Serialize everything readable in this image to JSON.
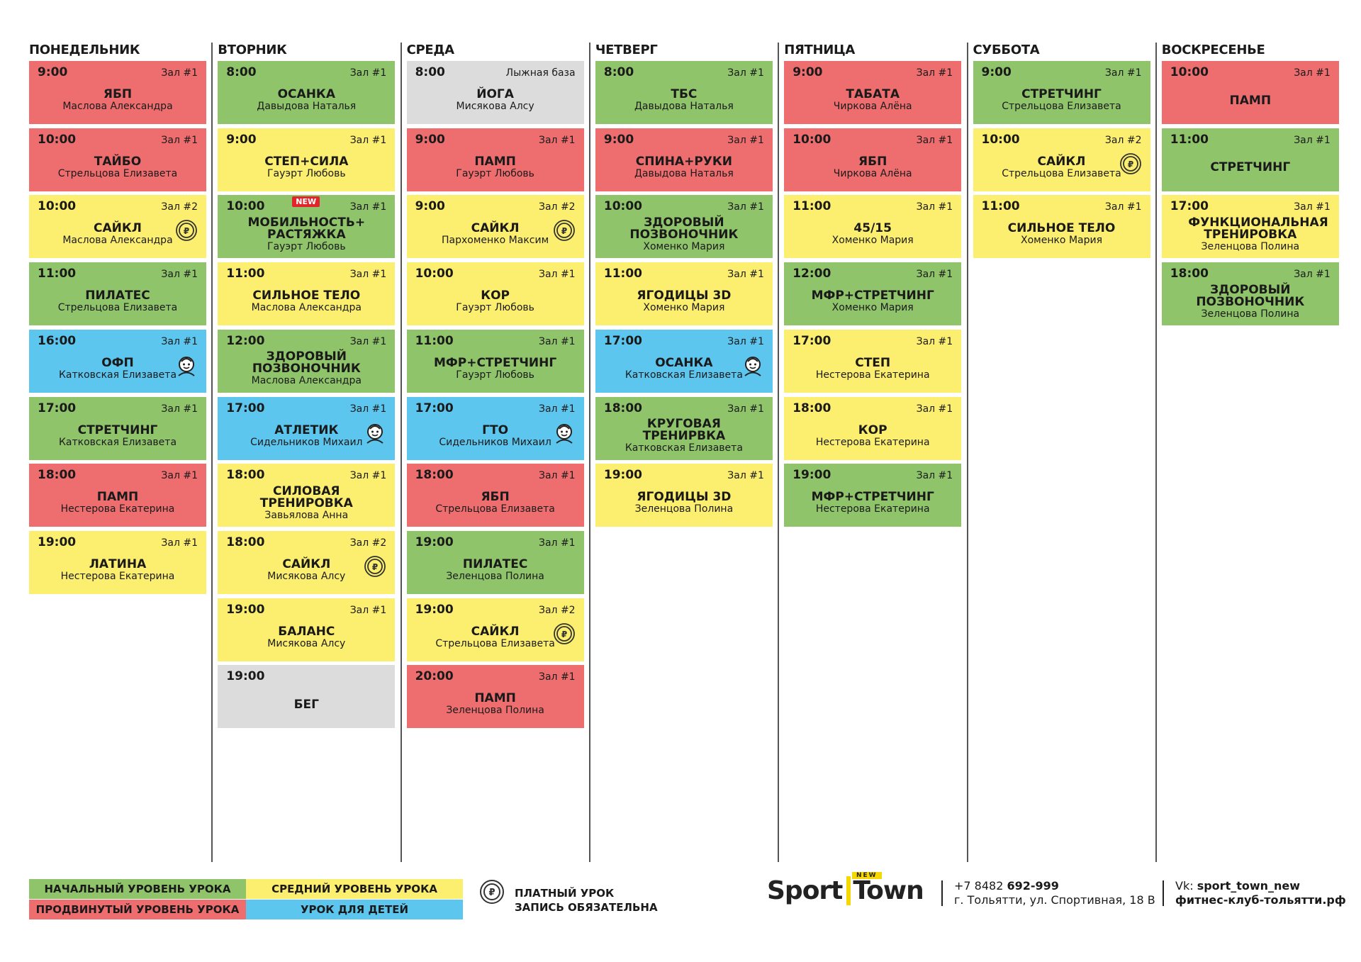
{
  "days": [
    {
      "name": "ПОНЕДЕЛЬНИК",
      "classes": [
        {
          "time": "9:00",
          "hall": "Зал #1",
          "title": "ЯБП",
          "trainer": "Маслова Александра",
          "color": "#ee6e70"
        },
        {
          "time": "10:00",
          "hall": "Зал #1",
          "title": "ТАЙБО",
          "trainer": "Стрельцова Елизавета",
          "color": "#ee6e70"
        },
        {
          "time": "10:00",
          "hall": "Зал #2",
          "title": "САЙКЛ",
          "trainer": "Маслова Александра",
          "color": "#fcee6e",
          "paid": true
        },
        {
          "time": "11:00",
          "hall": "Зал #1",
          "title": "ПИЛАТЕС",
          "trainer": "Стрельцова Елизавета",
          "color": "#8fc46b"
        },
        {
          "time": "16:00",
          "hall": "Зал #1",
          "title": "ОФП",
          "trainer": "Катковская Елизавета",
          "color": "#5cc6ee",
          "kids": true
        },
        {
          "time": "17:00",
          "hall": "Зал #1",
          "title": "СТРЕТЧИНГ",
          "trainer": "Катковская Елизавета",
          "color": "#8fc46b"
        },
        {
          "time": "18:00",
          "hall": "Зал #1",
          "title": "ПАМП",
          "trainer": "Нестерова Екатерина",
          "color": "#ee6e70"
        },
        {
          "time": "19:00",
          "hall": "Зал #1",
          "title": "ЛАТИНА",
          "trainer": "Нестерова Екатерина",
          "color": "#fcee6e"
        }
      ]
    },
    {
      "name": "ВТОРНИК",
      "classes": [
        {
          "time": "8:00",
          "hall": "Зал #1",
          "title": "ОСАНКА",
          "trainer": "Давыдова Наталья",
          "color": "#8fc46b"
        },
        {
          "time": "9:00",
          "hall": "Зал #1",
          "title": "СТЕП+СИЛА",
          "trainer": "Гауэрт Любовь",
          "color": "#fcee6e"
        },
        {
          "time": "10:00",
          "hall": "Зал #1",
          "title": "МОБИЛЬНОСТЬ+ РАСТЯЖКА",
          "trainer": "Гауэрт Любовь",
          "color": "#8fc46b",
          "badge": "NEW"
        },
        {
          "time": "11:00",
          "hall": "Зал #1",
          "title": "СИЛЬНОЕ ТЕЛО",
          "trainer": "Маслова Александра",
          "color": "#fcee6e"
        },
        {
          "time": "12:00",
          "hall": "Зал #1",
          "title": "ЗДОРОВЫЙ ПОЗВОНОЧНИК",
          "trainer": "Маслова Александра",
          "color": "#8fc46b"
        },
        {
          "time": "17:00",
          "hall": "Зал #1",
          "title": "АТЛЕТИК",
          "trainer": "Сидельников Михаил",
          "color": "#5cc6ee",
          "kids": true
        },
        {
          "time": "18:00",
          "hall": "Зал #1",
          "title": "СИЛОВАЯ ТРЕНИРОВКА",
          "trainer": "Завьялова Анна",
          "color": "#fcee6e"
        },
        {
          "time": "18:00",
          "hall": "Зал #2",
          "title": "САЙКЛ",
          "trainer": "Мисякова Алсу",
          "color": "#fcee6e",
          "paid": true
        },
        {
          "time": "19:00",
          "hall": "Зал #1",
          "title": "БАЛАНС",
          "trainer": "Мисякова Алсу",
          "color": "#fcee6e"
        },
        {
          "time": "19:00",
          "title": "БЕГ",
          "color": "#dcdcdc"
        }
      ]
    },
    {
      "name": "СРЕДА",
      "classes": [
        {
          "time": "8:00",
          "hall": "Лыжная база",
          "title": "ЙОГА",
          "trainer": "Мисякова Алсу",
          "color": "#dcdcdc"
        },
        {
          "time": "9:00",
          "hall": "Зал #1",
          "title": "ПАМП",
          "trainer": "Гауэрт Любовь",
          "color": "#ee6e70"
        },
        {
          "time": "9:00",
          "hall": "Зал #2",
          "title": "САЙКЛ",
          "trainer": "Пархоменко Максим",
          "color": "#fcee6e",
          "paid": true
        },
        {
          "time": "10:00",
          "hall": "Зал #1",
          "title": "КОР",
          "trainer": "Гауэрт Любовь",
          "color": "#fcee6e"
        },
        {
          "time": "11:00",
          "hall": "Зал #1",
          "title": "МФР+СТРЕТЧИНГ",
          "trainer": "Гауэрт Любовь",
          "color": "#8fc46b"
        },
        {
          "time": "17:00",
          "hall": "Зал #1",
          "title": "ГТО",
          "trainer": "Сидельников Михаил",
          "color": "#5cc6ee",
          "kids": true
        },
        {
          "time": "18:00",
          "hall": "Зал #1",
          "title": "ЯБП",
          "trainer": "Стрельцова Елизавета",
          "color": "#ee6e70"
        },
        {
          "time": "19:00",
          "hall": "Зал #1",
          "title": "ПИЛАТЕС",
          "trainer": "Зеленцова Полина",
          "color": "#8fc46b"
        },
        {
          "time": "19:00",
          "hall": "Зал #2",
          "title": "САЙКЛ",
          "trainer": "Стрельцова Елизавета",
          "color": "#fcee6e",
          "paid": true
        },
        {
          "time": "20:00",
          "hall": "Зал #1",
          "title": "ПАМП",
          "trainer": "Зеленцова Полина",
          "color": "#ee6e70"
        }
      ]
    },
    {
      "name": "ЧЕТВЕРГ",
      "classes": [
        {
          "time": "8:00",
          "hall": "Зал #1",
          "title": "ТБС",
          "trainer": "Давыдова Наталья",
          "color": "#8fc46b"
        },
        {
          "time": "9:00",
          "hall": "Зал #1",
          "title": "СПИНА+РУКИ",
          "trainer": "Давыдова Наталья",
          "color": "#ee6e70"
        },
        {
          "time": "10:00",
          "hall": "Зал #1",
          "title": "ЗДОРОВЫЙ ПОЗВОНОЧНИК",
          "trainer": "Хоменко Мария",
          "color": "#8fc46b"
        },
        {
          "time": "11:00",
          "hall": "Зал #1",
          "title": "ЯГОДИЦЫ 3D",
          "trainer": "Хоменко Мария",
          "color": "#fcee6e"
        },
        {
          "time": "17:00",
          "hall": "Зал #1",
          "title": "ОСАНКА",
          "trainer": "Катковская Елизавета",
          "color": "#5cc6ee",
          "kids": true
        },
        {
          "time": "18:00",
          "hall": "Зал #1",
          "title": "КРУГОВАЯ ТРЕНИРВКА",
          "trainer": "Катковская Елизавета",
          "color": "#8fc46b"
        },
        {
          "time": "19:00",
          "hall": "Зал #1",
          "title": "ЯГОДИЦЫ 3D",
          "trainer": "Зеленцова Полина",
          "color": "#fcee6e"
        }
      ]
    },
    {
      "name": "ПЯТНИЦА",
      "classes": [
        {
          "time": "9:00",
          "hall": "Зал #1",
          "title": "ТАБАТА",
          "trainer": "Чиркова Алёна",
          "color": "#ee6e70"
        },
        {
          "time": "10:00",
          "hall": "Зал #1",
          "title": "ЯБП",
          "trainer": "Чиркова Алёна",
          "color": "#ee6e70"
        },
        {
          "time": "11:00",
          "hall": "Зал #1",
          "title": "45/15",
          "trainer": "Хоменко Мария",
          "color": "#fcee6e"
        },
        {
          "time": "12:00",
          "hall": "Зал #1",
          "title": "МФР+СТРЕТЧИНГ",
          "trainer": "Хоменко Мария",
          "color": "#8fc46b"
        },
        {
          "time": "17:00",
          "hall": "Зал #1",
          "title": "СТЕП",
          "trainer": "Нестерова Екатерина",
          "color": "#fcee6e"
        },
        {
          "time": "18:00",
          "hall": "Зал #1",
          "title": "КОР",
          "trainer": "Нестерова Екатерина",
          "color": "#fcee6e"
        },
        {
          "time": "19:00",
          "hall": "Зал #1",
          "title": "МФР+СТРЕТЧИНГ",
          "trainer": "Нестерова Екатерина",
          "color": "#8fc46b"
        }
      ]
    },
    {
      "name": "СУББОТА",
      "classes": [
        {
          "time": "9:00",
          "hall": "Зал #1",
          "title": "СТРЕТЧИНГ",
          "trainer": "Стрельцова Елизавета",
          "color": "#8fc46b"
        },
        {
          "time": "10:00",
          "hall": "Зал #2",
          "title": "САЙКЛ",
          "trainer": "Стрельцова Елизавета",
          "color": "#fcee6e",
          "paid": true
        },
        {
          "time": "11:00",
          "hall": "Зал #1",
          "title": "СИЛЬНОЕ ТЕЛО",
          "trainer": "Хоменко Мария",
          "color": "#fcee6e"
        }
      ]
    },
    {
      "name": "ВОСКРЕСЕНЬЕ",
      "classes": [
        {
          "time": "10:00",
          "hall": "Зал #1",
          "title": "ПАМП",
          "color": "#ee6e70"
        },
        {
          "time": "11:00",
          "hall": "Зал #1",
          "title": "СТРЕТЧИНГ",
          "color": "#8fc46b"
        },
        {
          "time": "17:00",
          "hall": "Зал #1",
          "title": "ФУНКЦИОНАЛЬНАЯ ТРЕНИРОВКА",
          "trainer": "Зеленцова Полина",
          "color": "#fcee6e"
        },
        {
          "time": "18:00",
          "hall": "Зал #1",
          "title": "ЗДОРОВЫЙ ПОЗВОНОЧНИК",
          "trainer": "Зеленцова Полина",
          "color": "#8fc46b"
        }
      ]
    }
  ],
  "legend": [
    {
      "label": "НАЧАЛЬНЫЙ УРОВЕНЬ УРОКА",
      "color": "#8fc46b"
    },
    {
      "label": "СРЕДНИЙ УРОВЕНЬ УРОКА",
      "color": "#fcee6e"
    },
    {
      "label": "ПРОДВИНУТЫЙ УРОВЕНЬ УРОКА",
      "color": "#ee6e70"
    },
    {
      "label": "УРОК ДЛЯ ДЕТЕЙ",
      "color": "#5cc6ee"
    }
  ],
  "paid_note": [
    "ПЛАТНЫЙ УРОК",
    "ЗАПИСЬ ОБЯЗАТЕЛЬНА"
  ],
  "logo": {
    "word1": "Sport",
    "word2": "Town",
    "tag": "NEW"
  },
  "contacts": {
    "phone_code": "+7 8482",
    "phone": "692-999",
    "address": "г. Тольятти, ул. Спортивная, 18 В",
    "vk_label": "Vk:",
    "vk": "sport_town_new",
    "site": "фитнес-клуб-тольятти.рф"
  }
}
